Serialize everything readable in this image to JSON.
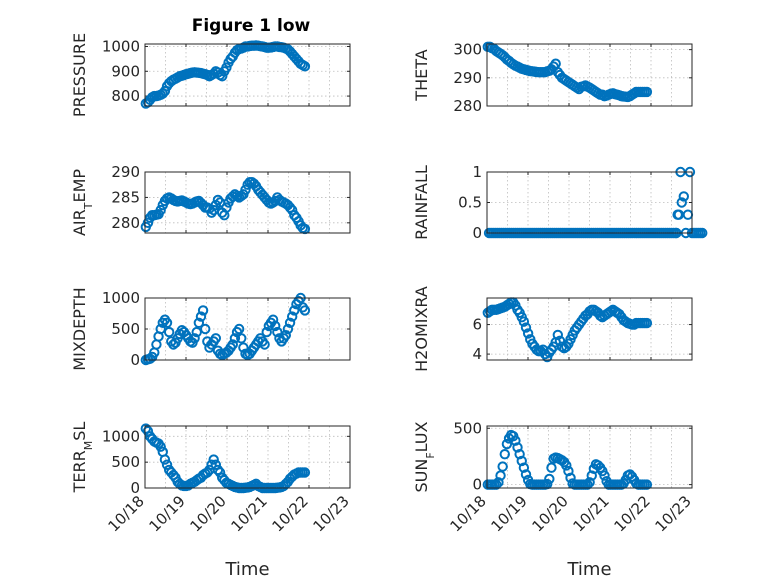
{
  "figure_title": "Figure 1 low",
  "colors": {
    "marker": "#0072BD",
    "axes": "#262626",
    "grid": "#bdbdbd"
  },
  "chart_data": [
    {
      "type": "scatter",
      "title": "Figure 1 low",
      "ylabel": "PRESSURE",
      "ylim": [
        760,
        1010
      ],
      "yticks": [
        800,
        900,
        1000
      ],
      "xlim": [
        0,
        5
      ],
      "xticklabels": [],
      "xlabel": "",
      "grid": true,
      "y": [
        770,
        775,
        785,
        795,
        800,
        800,
        802,
        805,
        810,
        820,
        840,
        852,
        860,
        866,
        870,
        875,
        880,
        882,
        885,
        888,
        890,
        893,
        895,
        896,
        895,
        894,
        893,
        890,
        888,
        885,
        880,
        885,
        890,
        900,
        895,
        885,
        880,
        900,
        915,
        935,
        950,
        960,
        975,
        985,
        990,
        992,
        995,
        1000,
        1000,
        1002,
        1003,
        1003,
        1004,
        1003,
        1001,
        1000,
        998,
        995,
        995,
        996,
        998,
        1000,
        1000,
        998,
        997,
        995,
        992,
        988,
        980,
        970,
        960,
        950,
        940,
        930,
        925,
        920
      ]
    },
    {
      "type": "scatter",
      "ylabel": "THETA",
      "ylim": [
        280,
        302
      ],
      "yticks": [
        280,
        290,
        300
      ],
      "xlim": [
        0,
        5
      ],
      "xticklabels": [],
      "xlabel": "",
      "grid": true,
      "y": [
        301,
        301,
        300.5,
        300.2,
        299.5,
        299,
        298.5,
        298,
        297.3,
        296.5,
        296,
        295.3,
        294.8,
        294.3,
        294,
        293.6,
        293.2,
        293,
        292.8,
        292.6,
        292.4,
        292.3,
        292.2,
        292.1,
        292,
        292,
        292,
        292,
        292.3,
        292.5,
        293,
        294,
        295,
        292,
        291,
        290,
        289.5,
        289,
        288.5,
        288,
        287.5,
        287,
        286.5,
        286,
        286.8,
        287,
        287.3,
        286.9,
        286.5,
        286,
        285.5,
        285,
        284.5,
        284,
        284,
        283.5,
        283.7,
        284,
        284.3,
        284.5,
        284.2,
        284,
        283.8,
        283.5,
        283.4,
        283.3,
        283.2,
        283.5,
        284,
        284.5,
        285,
        285,
        285,
        285,
        285,
        285
      ]
    },
    {
      "type": "scatter",
      "ylabel": "AIR_TEMP",
      "ylim": [
        278,
        290
      ],
      "yticks": [
        280,
        285,
        290
      ],
      "xlim": [
        0,
        5
      ],
      "xticklabels": [],
      "xlabel": "",
      "grid": true,
      "y": [
        279.2,
        280,
        281,
        281.5,
        281.5,
        281.6,
        281.7,
        282.5,
        283.5,
        284.3,
        284.8,
        285,
        284.8,
        284.5,
        284.3,
        284.2,
        284.3,
        284.4,
        284.2,
        284,
        283.8,
        283.7,
        283.8,
        284,
        284.2,
        284.3,
        283.9,
        283.5,
        283,
        283,
        282.8,
        282,
        282.5,
        283.5,
        284.5,
        284,
        282,
        281.5,
        283,
        284,
        284.8,
        285.2,
        285.6,
        285.3,
        285,
        285.3,
        285.6,
        286.5,
        287.5,
        288,
        288,
        287.7,
        287.2,
        286.5,
        286,
        285.5,
        285,
        284.5,
        284,
        283.8,
        284,
        284.3,
        285,
        284.5,
        284.2,
        284,
        283.8,
        283.5,
        283,
        282.5,
        281.5,
        281,
        280.3,
        279.5,
        279,
        278.8
      ]
    },
    {
      "type": "scatter",
      "ylabel": "RAINFALL",
      "ylim": [
        0,
        1
      ],
      "yticks": [
        0,
        0.5,
        1
      ],
      "xlim": [
        0,
        5
      ],
      "xticklabels": [],
      "xlabel": "",
      "grid": true,
      "x": [
        0.05,
        0.1,
        0.15,
        0.2,
        0.25,
        0.3,
        0.35,
        0.4,
        0.45,
        0.5,
        0.55,
        0.6,
        0.65,
        0.7,
        0.75,
        0.8,
        0.85,
        0.9,
        0.95,
        1.0,
        1.05,
        1.1,
        1.15,
        1.2,
        1.25,
        1.3,
        1.35,
        1.4,
        1.45,
        1.5,
        1.55,
        1.6,
        1.65,
        1.7,
        1.75,
        1.8,
        1.85,
        1.9,
        1.95,
        2.0,
        2.05,
        2.1,
        2.15,
        2.2,
        2.25,
        2.3,
        2.35,
        2.4,
        2.45,
        2.5,
        2.55,
        2.6,
        2.65,
        2.7,
        2.75,
        2.8,
        2.85,
        2.9,
        2.95,
        3.0,
        3.05,
        3.1,
        3.15,
        3.2,
        3.25,
        3.3,
        3.35,
        3.4,
        3.45,
        3.5,
        3.55,
        3.6,
        3.65,
        3.7,
        3.75,
        3.8,
        3.85,
        3.9,
        3.95,
        4.0,
        4.05,
        4.1,
        4.15,
        4.2,
        4.25,
        4.3,
        4.35,
        4.4,
        4.45,
        4.5,
        4.55,
        4.6,
        4.62,
        4.65,
        4.68,
        4.72,
        4.75,
        4.8,
        4.85,
        4.9,
        4.95,
        5.0,
        5.05,
        5.1,
        5.15,
        5.2,
        5.25
      ],
      "y": [
        0,
        0,
        0,
        0,
        0,
        0,
        0,
        0,
        0,
        0,
        0,
        0,
        0,
        0,
        0,
        0,
        0,
        0,
        0,
        0,
        0,
        0,
        0,
        0,
        0,
        0,
        0,
        0,
        0,
        0,
        0,
        0,
        0,
        0,
        0,
        0,
        0,
        0,
        0,
        0,
        0,
        0,
        0,
        0,
        0,
        0,
        0,
        0,
        0,
        0,
        0,
        0,
        0,
        0,
        0,
        0,
        0,
        0,
        0,
        0,
        0,
        0,
        0,
        0,
        0,
        0,
        0,
        0,
        0,
        0,
        0,
        0,
        0,
        0,
        0,
        0,
        0,
        0,
        0,
        0,
        0,
        0,
        0,
        0,
        0,
        0,
        0,
        0,
        0,
        0,
        0,
        0,
        0,
        0.3,
        0.3,
        1.0,
        0.5,
        0.6,
        0,
        0.3,
        1.0,
        0,
        0,
        0,
        0,
        0,
        0
      ]
    },
    {
      "type": "scatter",
      "ylabel": "MIXDEPTH",
      "ylim": [
        0,
        1000
      ],
      "yticks": [
        0,
        500,
        1000
      ],
      "xlim": [
        0,
        5
      ],
      "xticklabels": [],
      "xlabel": "",
      "grid": true,
      "y": [
        0,
        10,
        20,
        50,
        120,
        250,
        380,
        500,
        600,
        650,
        600,
        450,
        300,
        250,
        280,
        350,
        420,
        480,
        450,
        400,
        350,
        300,
        280,
        350,
        450,
        600,
        700,
        800,
        500,
        300,
        200,
        250,
        300,
        350,
        150,
        100,
        80,
        100,
        120,
        150,
        200,
        250,
        350,
        450,
        500,
        350,
        200,
        100,
        80,
        100,
        150,
        200,
        250,
        300,
        350,
        300,
        250,
        450,
        550,
        600,
        650,
        550,
        450,
        350,
        300,
        350,
        400,
        500,
        600,
        700,
        800,
        900,
        950,
        1000,
        850,
        800
      ]
    },
    {
      "type": "scatter",
      "ylabel": "H2OMIXRA",
      "ylim": [
        3.6,
        7.8
      ],
      "yticks": [
        4,
        6
      ],
      "xlim": [
        0,
        5
      ],
      "xticklabels": [],
      "xlabel": "",
      "grid": true,
      "y": [
        6.8,
        6.9,
        7.0,
        7.0,
        7.0,
        7.05,
        7.1,
        7.15,
        7.2,
        7.3,
        7.4,
        7.5,
        7.5,
        7.3,
        7.0,
        6.8,
        6.5,
        6.2,
        5.8,
        5.4,
        5.0,
        4.7,
        4.5,
        4.3,
        4.2,
        4.2,
        4.3,
        4.0,
        3.8,
        4.1,
        4.3,
        4.5,
        4.8,
        5.3,
        4.9,
        4.5,
        4.4,
        4.5,
        4.7,
        5.0,
        5.3,
        5.6,
        5.8,
        6.0,
        6.2,
        6.4,
        6.6,
        6.7,
        6.9,
        7.0,
        7.0,
        6.9,
        6.8,
        6.6,
        6.5,
        6.6,
        6.7,
        6.8,
        6.9,
        7.0,
        6.9,
        6.8,
        6.7,
        6.5,
        6.3,
        6.2,
        6.1,
        6.05,
        6.0,
        6.0,
        6.1,
        6.1,
        6.1,
        6.1,
        6.1,
        6.1
      ]
    },
    {
      "type": "scatter",
      "ylabel": "TERR_MSL",
      "ylim": [
        0,
        1200
      ],
      "yticks": [
        0,
        500,
        1000
      ],
      "xlim": [
        0,
        5
      ],
      "xticklabels": [
        "10/18",
        "10/19",
        "10/20",
        "10/21",
        "10/22",
        "10/23"
      ],
      "xlabel": "Time",
      "grid": true,
      "y": [
        1150,
        1100,
        1000,
        950,
        900,
        880,
        860,
        800,
        700,
        550,
        450,
        350,
        300,
        250,
        200,
        120,
        80,
        50,
        40,
        40,
        50,
        80,
        100,
        120,
        150,
        180,
        200,
        250,
        280,
        300,
        350,
        450,
        550,
        450,
        350,
        300,
        200,
        150,
        100,
        80,
        60,
        40,
        20,
        10,
        0,
        0,
        0,
        5,
        10,
        20,
        40,
        60,
        80,
        40,
        20,
        0,
        0,
        0,
        0,
        0,
        0,
        0,
        5,
        10,
        20,
        40,
        80,
        120,
        180,
        220,
        260,
        280,
        300,
        300,
        300,
        300
      ]
    },
    {
      "type": "scatter",
      "ylabel": "SUN_FLUX",
      "ylim": [
        -30,
        520
      ],
      "yticks": [
        0,
        500
      ],
      "xlim": [
        0,
        5
      ],
      "xticklabels": [
        "10/18",
        "10/19",
        "10/20",
        "10/21",
        "10/22",
        "10/23"
      ],
      "xlabel": "Time",
      "grid": true,
      "y": [
        0,
        0,
        0,
        0,
        0,
        20,
        80,
        160,
        270,
        360,
        410,
        440,
        430,
        390,
        330,
        270,
        210,
        150,
        90,
        40,
        5,
        0,
        0,
        0,
        0,
        0,
        0,
        0,
        5,
        50,
        150,
        230,
        240,
        235,
        225,
        215,
        200,
        170,
        120,
        60,
        10,
        0,
        0,
        0,
        0,
        0,
        0,
        0,
        20,
        80,
        140,
        180,
        170,
        150,
        120,
        80,
        30,
        0,
        0,
        0,
        0,
        0,
        0,
        0,
        10,
        40,
        80,
        90,
        70,
        40,
        10,
        0,
        0,
        0,
        0,
        0
      ]
    }
  ]
}
